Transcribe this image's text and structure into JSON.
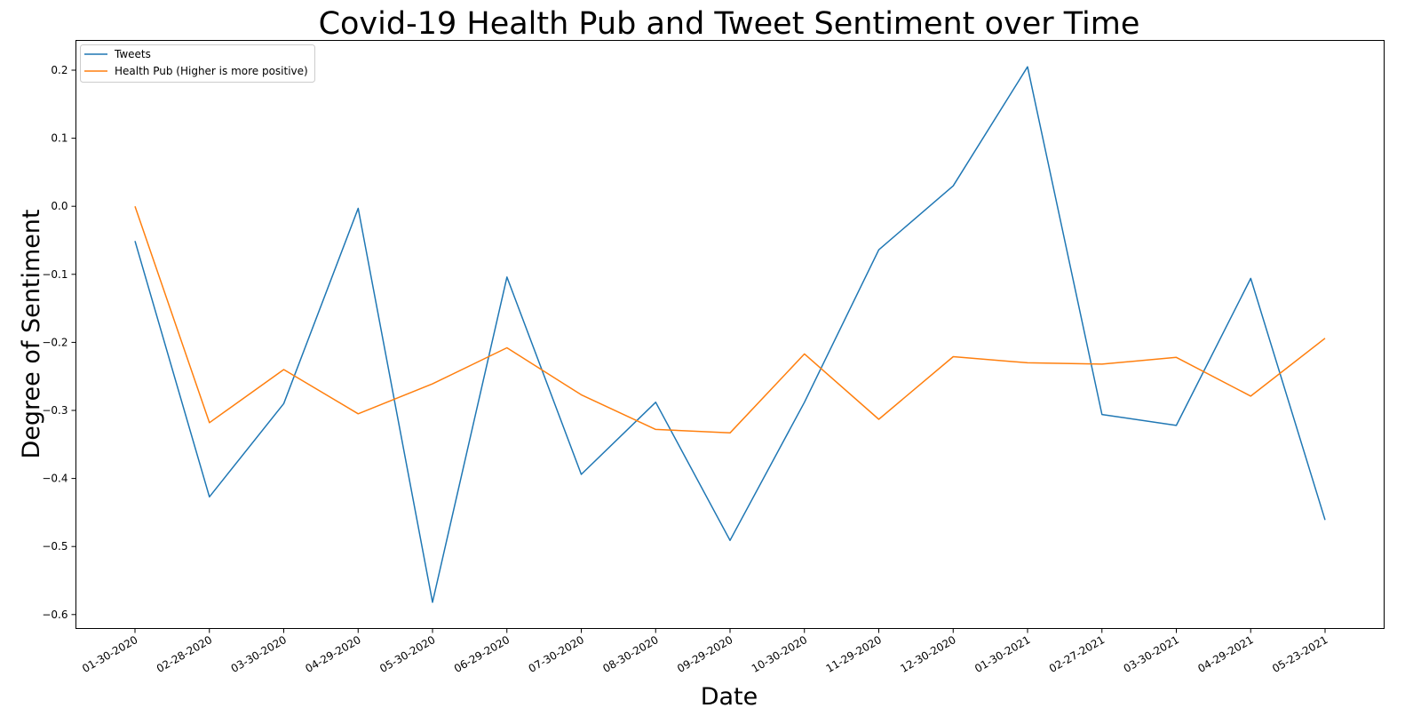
{
  "chart_data": {
    "type": "line",
    "title": "Covid-19 Health Pub and Tweet Sentiment over Time",
    "xlabel": "Date",
    "ylabel": "Degree of Sentiment",
    "categories": [
      "01-30-2020",
      "02-28-2020",
      "03-30-2020",
      "04-29-2020",
      "05-30-2020",
      "06-29-2020",
      "07-30-2020",
      "08-30-2020",
      "09-29-2020",
      "10-30-2020",
      "11-29-2020",
      "12-30-2020",
      "01-30-2021",
      "02-27-2021",
      "03-30-2021",
      "04-29-2021",
      "05-23-2021"
    ],
    "ylim": [
      -0.62,
      0.24
    ],
    "yticks": [
      -0.6,
      -0.5,
      -0.4,
      -0.3,
      -0.2,
      -0.1,
      0.0,
      0.1,
      0.2
    ],
    "ytick_labels": [
      "−0.6",
      "−0.5",
      "−0.4",
      "−0.3",
      "−0.2",
      "−0.1",
      "0.0",
      "0.1",
      "0.2"
    ],
    "grid": false,
    "legend_position": "top-left",
    "series": [
      {
        "name": "Tweets",
        "color": "#1f77b4",
        "values": [
          -0.051,
          -0.427,
          -0.29,
          -0.003,
          -0.582,
          -0.104,
          -0.394,
          -0.288,
          -0.491,
          -0.288,
          -0.064,
          0.03,
          0.205,
          -0.306,
          -0.322,
          -0.106,
          -0.461
        ]
      },
      {
        "name": "Health Pub (Higher is more positive)",
        "color": "#ff7f0e",
        "values": [
          0.0,
          -0.318,
          -0.24,
          -0.305,
          -0.261,
          -0.208,
          -0.277,
          -0.328,
          -0.333,
          -0.217,
          -0.313,
          -0.221,
          -0.23,
          -0.232,
          -0.222,
          -0.279,
          -0.194
        ]
      }
    ]
  }
}
